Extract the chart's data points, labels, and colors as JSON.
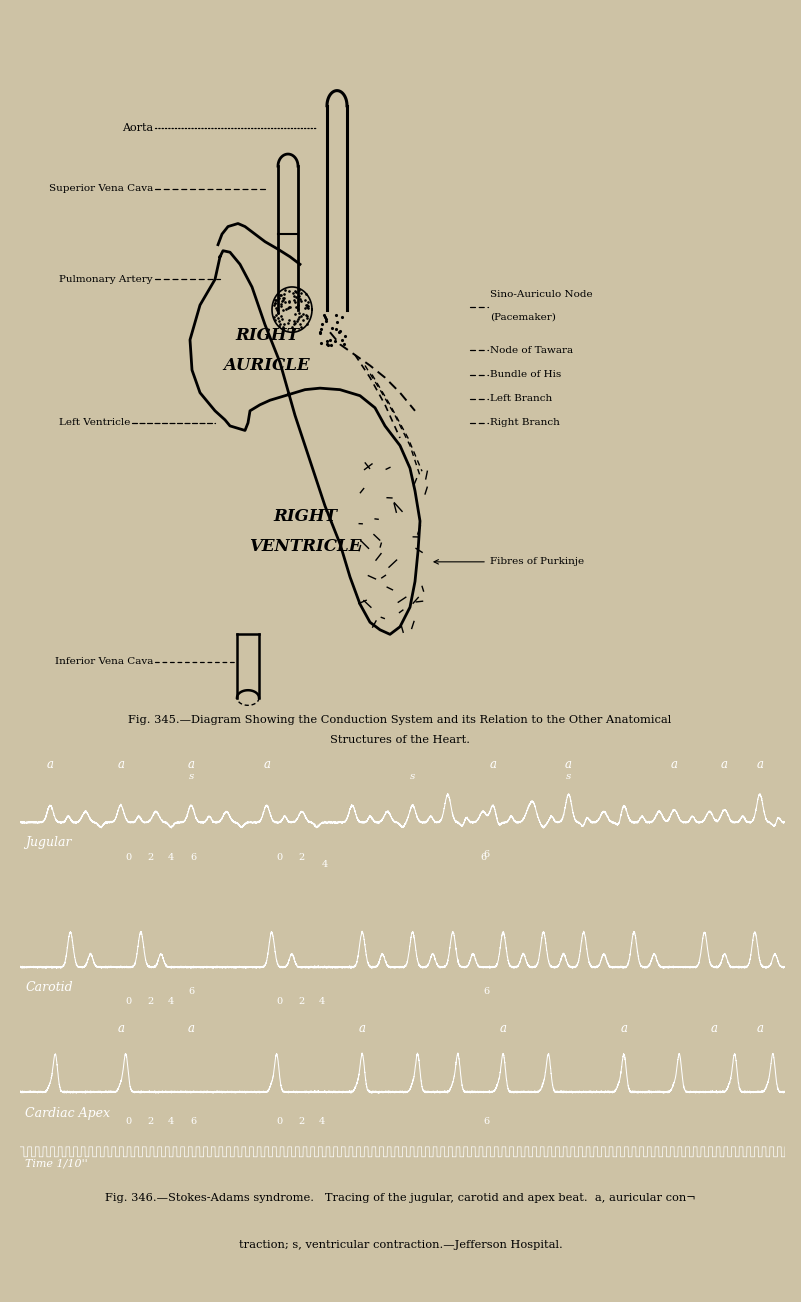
{
  "page_bg": "#cdc2a5",
  "fig345_caption_line1": "Fig. 345.—Diagram Showing the Conduction System and its Relation to the Other Anatomical",
  "fig345_caption_line2": "Structures of the Heart.",
  "fig346_caption_line1": "Fig. 346.—Stokes-Adams syndrome.   Tracing of the jugular, carotid and apex beat.  a, auricular con¬",
  "fig346_caption_line2": "traction; s, ventricular contraction.—Jefferson Hospital.",
  "ecg_bg": "#0a0a0a",
  "left_labels": [
    "Aorta",
    "Superior Vena Cava",
    "Pulmonary Artery",
    "Left Ventricle",
    "Inferior Vena Cava"
  ],
  "right_labels_top": [
    "Sino-Auriculo Node",
    "(Pacemaker)",
    "Node of Tawara",
    "Bundle of His",
    "Left Branch",
    "Right Branch"
  ],
  "right_label_bottom": "Fibres of Purkinje",
  "heart_label1": "RIGHT",
  "heart_label2": "AURICLE",
  "heart_label3": "RIGHT",
  "heart_label4": "VENTRICLE"
}
